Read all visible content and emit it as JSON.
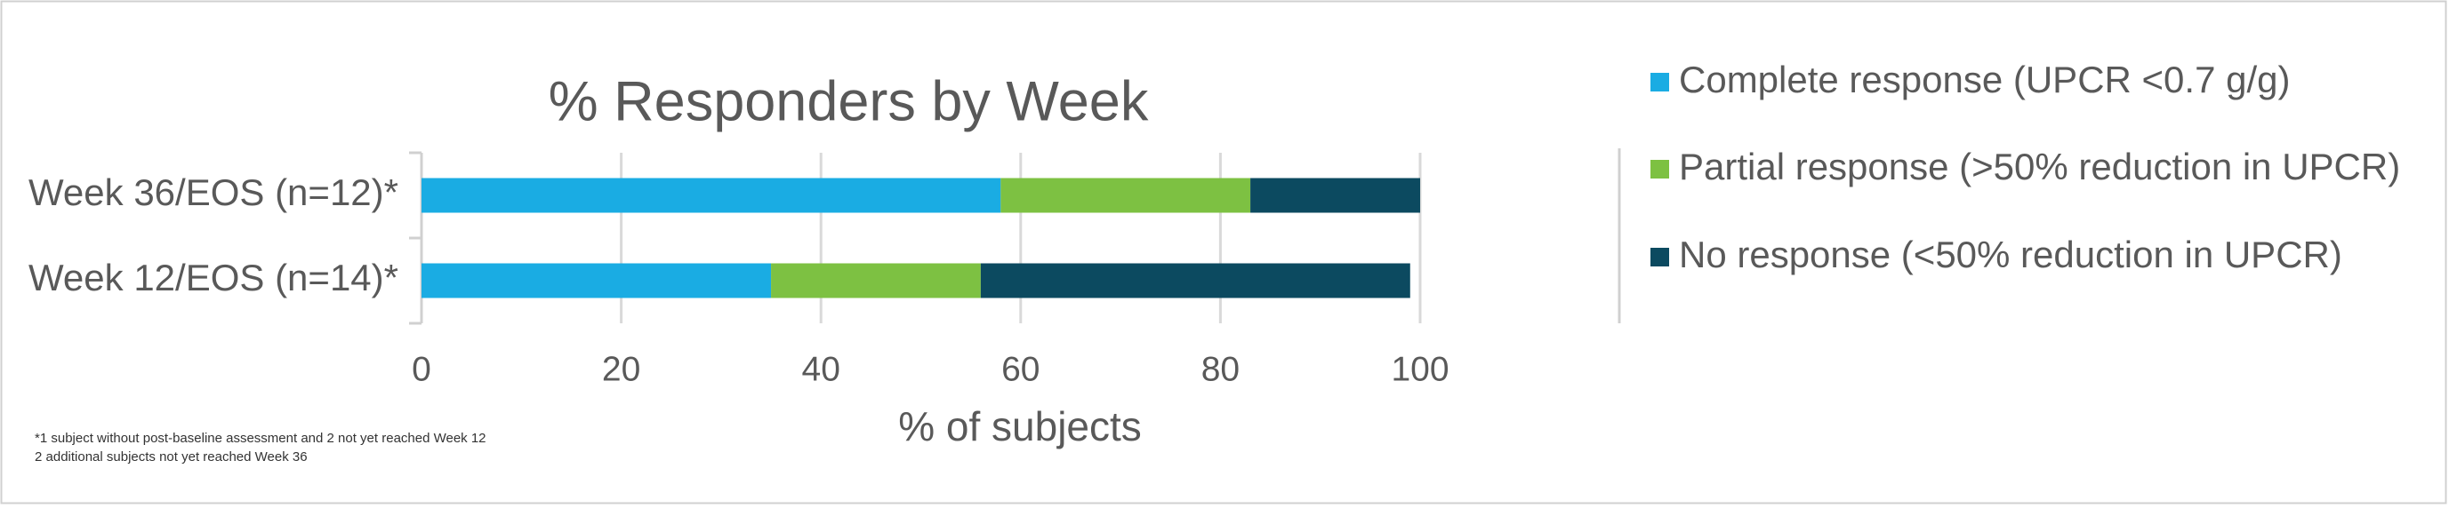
{
  "chart_data": {
    "type": "stacked-bar-horizontal",
    "title": "% Responders by Week",
    "x_label": "% of subjects",
    "categories": [
      "Week 36/EOS (n=12)*",
      "Week 12/EOS (n=14)*"
    ],
    "series": [
      {
        "name": "Complete response (UPCR <0.7 g/g)",
        "color": "#1aace3",
        "values": [
          58,
          35
        ]
      },
      {
        "name": "Partial response (>50% reduction in UPCR)",
        "color": "#7dc142",
        "values": [
          25,
          21
        ]
      },
      {
        "name": "No response (<50% reduction in UPCR)",
        "color": "#0c4a60",
        "values": [
          17,
          43
        ]
      }
    ],
    "xlim": [
      0,
      100
    ],
    "xticks": [
      0,
      20,
      40,
      60,
      80,
      100
    ],
    "grid": true,
    "legend": "right",
    "footnotes": [
      "*1 subject without post-baseline assessment and 2 not yet reached Week 12",
      "2 additional subjects not yet reached Week 36"
    ]
  }
}
